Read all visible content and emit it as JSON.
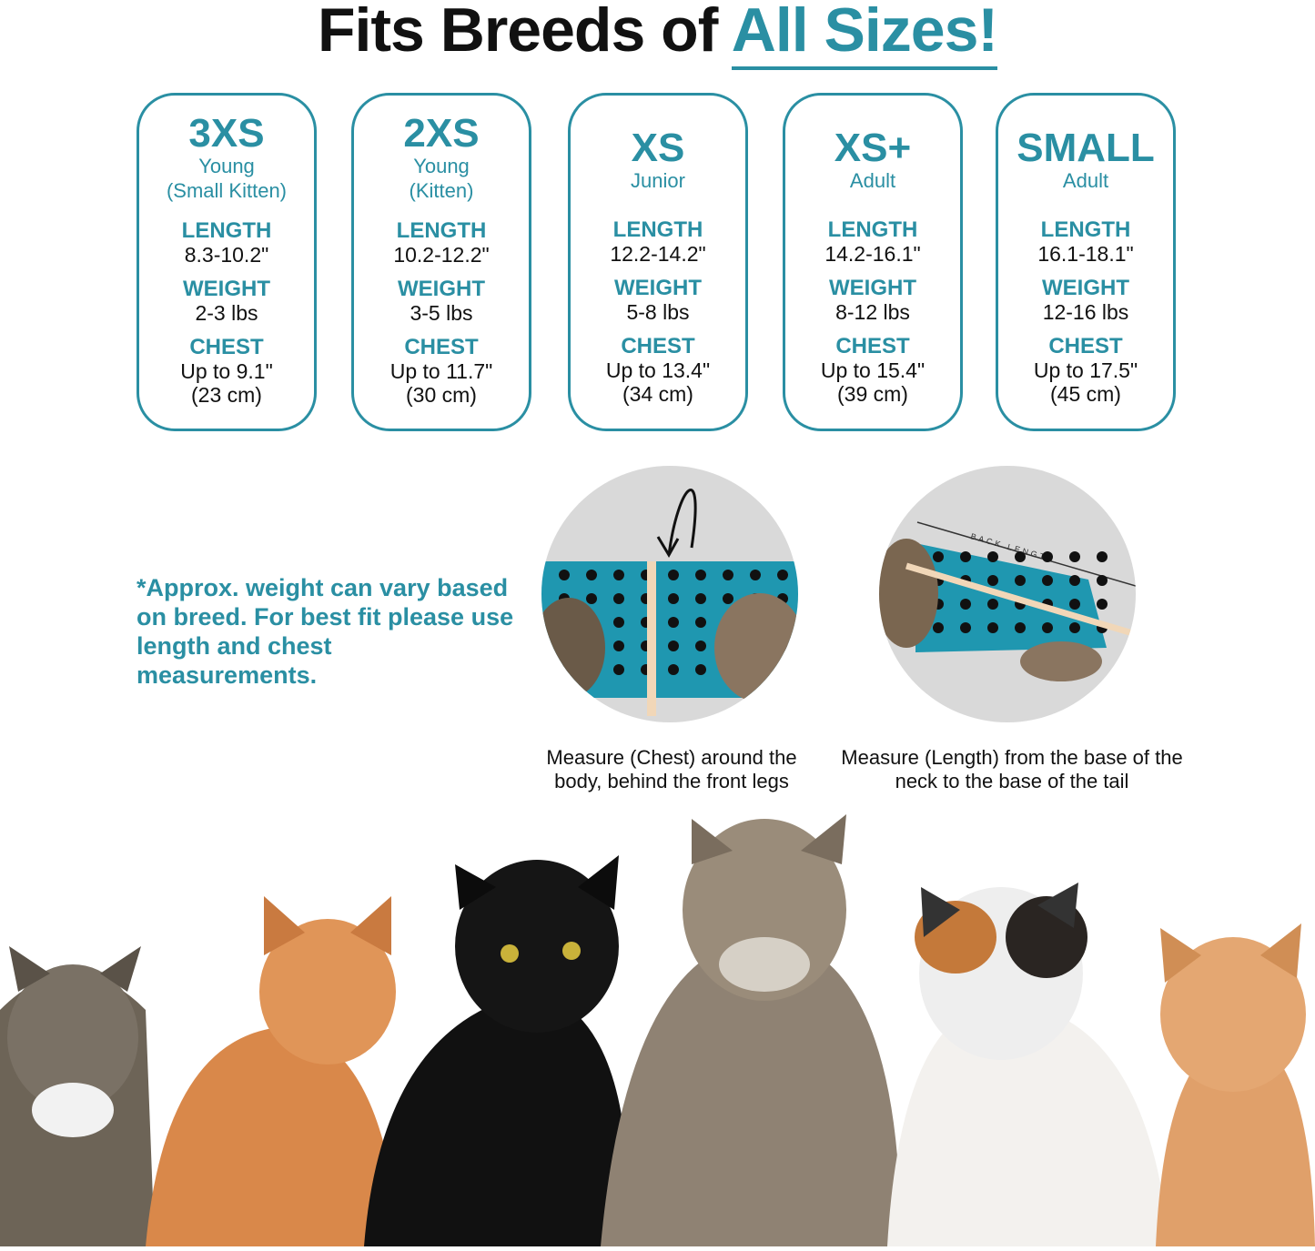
{
  "title": {
    "prefix": "Fits Breeds of ",
    "highlight": "All Sizes!"
  },
  "accent": "#2a8fa3",
  "sizes": [
    {
      "size": "3XS",
      "age": "Young",
      "age2": "(Small Kitten)",
      "length_label": "LENGTH",
      "length": "8.3-10.2\"",
      "weight_label": "WEIGHT",
      "weight": "2-3 lbs",
      "chest_label": "CHEST",
      "chest": "Up to 9.1\"",
      "chest_cm": "(23 cm)"
    },
    {
      "size": "2XS",
      "age": "Young",
      "age2": "(Kitten)",
      "length_label": "LENGTH",
      "length": "10.2-12.2\"",
      "weight_label": "WEIGHT",
      "weight": "3-5 lbs",
      "chest_label": "CHEST",
      "chest": "Up to 11.7\"",
      "chest_cm": "(30 cm)"
    },
    {
      "size": "XS",
      "age": "Junior",
      "age2": "",
      "length_label": "LENGTH",
      "length": "12.2-14.2\"",
      "weight_label": "WEIGHT",
      "weight": "5-8 lbs",
      "chest_label": "CHEST",
      "chest": "Up to 13.4\"",
      "chest_cm": "(34 cm)"
    },
    {
      "size": "XS+",
      "age": "Adult",
      "age2": "",
      "length_label": "LENGTH",
      "length": "14.2-16.1\"",
      "weight_label": "WEIGHT",
      "weight": "8-12 lbs",
      "chest_label": "CHEST",
      "chest": "Up to 15.4\"",
      "chest_cm": "(39 cm)"
    },
    {
      "size": "SMALL",
      "age": "Adult",
      "age2": "",
      "length_label": "LENGTH",
      "length": "16.1-18.1\"",
      "weight_label": "WEIGHT",
      "weight": "12-16 lbs",
      "chest_label": "CHEST",
      "chest": "Up to 17.5\"",
      "chest_cm": "(45 cm)"
    }
  ],
  "note": "*Approx. weight can vary based on breed. For best fit please use length and chest measurements.",
  "measure": {
    "chest_caption": "Measure (Chest) around the body, behind the front legs",
    "length_caption": "Measure (Length) from the base of the neck to the base of the tail",
    "back_length_label": "BACK LENGTH"
  }
}
